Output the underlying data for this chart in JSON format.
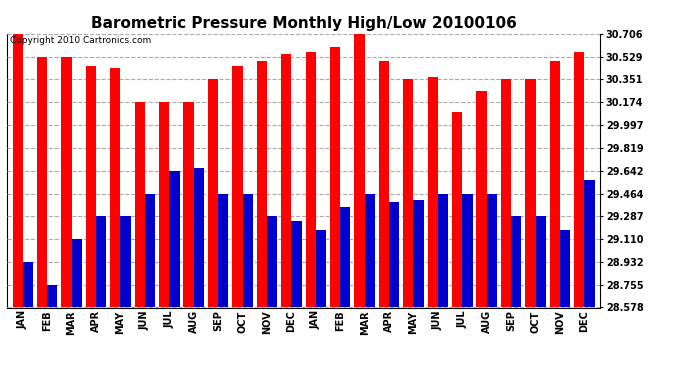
{
  "title": "Barometric Pressure Monthly High/Low 20100106",
  "copyright": "Copyright 2010 Cartronics.com",
  "months": [
    "JAN",
    "FEB",
    "MAR",
    "APR",
    "MAY",
    "JUN",
    "JUL",
    "AUG",
    "SEP",
    "OCT",
    "NOV",
    "DEC",
    "JAN",
    "FEB",
    "MAR",
    "APR",
    "MAY",
    "JUN",
    "JUL",
    "AUG",
    "SEP",
    "OCT",
    "NOV",
    "DEC"
  ],
  "highs": [
    30.706,
    30.529,
    30.529,
    30.457,
    30.44,
    30.174,
    30.174,
    30.174,
    30.351,
    30.457,
    30.493,
    30.547,
    30.565,
    30.6,
    30.706,
    30.493,
    30.351,
    30.37,
    30.101,
    30.263,
    30.351,
    30.351,
    30.493,
    30.565
  ],
  "lows": [
    28.932,
    28.755,
    29.11,
    29.287,
    29.287,
    29.464,
    29.642,
    29.66,
    29.464,
    29.464,
    29.287,
    29.25,
    29.18,
    29.36,
    29.464,
    29.395,
    29.41,
    29.464,
    29.464,
    29.464,
    29.287,
    29.287,
    29.18,
    29.57
  ],
  "yticks": [
    28.578,
    28.755,
    28.932,
    29.11,
    29.287,
    29.464,
    29.642,
    29.819,
    29.997,
    30.174,
    30.351,
    30.529,
    30.706
  ],
  "ymin": 28.578,
  "ymax": 30.706,
  "bar_width": 0.42,
  "high_color": "#FF0000",
  "low_color": "#0000CC",
  "bg_color": "#FFFFFF",
  "grid_color": "#AAAAAA",
  "title_fontsize": 11,
  "tick_fontsize": 7,
  "copyright_fontsize": 6.5
}
